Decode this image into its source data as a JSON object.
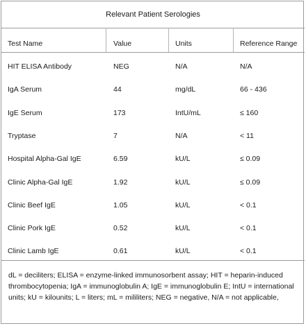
{
  "table": {
    "title": "Relevant Patient Serologies",
    "headers": [
      "Test Name",
      "Value",
      "Units",
      "Reference Range"
    ],
    "rows": [
      [
        "HIT ELISA Antibody",
        "NEG",
        "N/A",
        "N/A"
      ],
      [
        "IgA Serum",
        "44",
        "mg/dL",
        "66 - 436"
      ],
      [
        "IgE Serum",
        "173",
        "IntU/mL",
        "≤ 160"
      ],
      [
        "Tryptase",
        "7",
        "N/A",
        "< 11"
      ],
      [
        "Hospital Alpha-Gal IgE",
        "6.59",
        "kU/L",
        "≤ 0.09"
      ],
      [
        "Clinic Alpha-Gal IgE",
        "1.92",
        "kU/L",
        "≤ 0.09"
      ],
      [
        "Clinic Beef IgE",
        "1.05",
        "kU/L",
        "< 0.1"
      ],
      [
        "Clinic Pork IgE",
        "0.52",
        "kU/L",
        "< 0.1"
      ],
      [
        "Clinic Lamb IgE",
        "0.61",
        "kU/L",
        "< 0.1"
      ]
    ],
    "footnote": "dL = deciliters; ELISA = enzyme-linked immunosorbent assay; HIT = heparin-induced thrombocytopenia; IgA = immunoglobulin A; IgE = immunoglobulin E; IntU = international units; kU = kilounits; L = liters;  mL = mililiters; NEG = negative, N/A = not applicable,"
  }
}
